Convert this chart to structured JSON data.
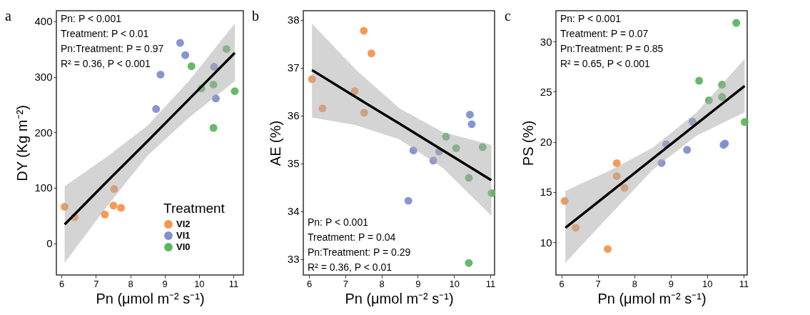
{
  "chart_data": [
    {
      "type": "scatter",
      "title": "a",
      "xlabel": "Pn (μmol m⁻² s⁻¹)",
      "ylabel": "DY (Kg m⁻²)",
      "legend_title": "Treatment",
      "legend": "bottom right",
      "xlim": [
        5.85,
        11.29
      ],
      "xticks": [
        6,
        7,
        8,
        9,
        10,
        11
      ],
      "ylim": [
        -57,
        419
      ],
      "yticks": [
        0,
        100,
        200,
        300,
        400
      ],
      "annotations": [
        "Pn: P < 0.001",
        "Treatment: P < 0.01",
        "Pn:Treatment: P = 0.97",
        "R² = 0.36, P < 0.001"
      ],
      "series": [
        {
          "name": "VI2",
          "color": "#f5954f",
          "marker": "circle",
          "x": [
            6.09,
            6.38,
            7.26,
            7.53,
            7.51,
            7.73
          ],
          "values": [
            66,
            47,
            52,
            98,
            68,
            64
          ]
        },
        {
          "name": "VI1",
          "color": "#8190cf",
          "marker": "circle",
          "x": [
            8.75,
            8.88,
            9.45,
            9.6,
            10.44,
            10.49
          ],
          "values": [
            242,
            304,
            361,
            339,
            318,
            261
          ]
        },
        {
          "name": "VI0",
          "color": "#5cb660",
          "marker": "circle",
          "x": [
            9.78,
            10.07,
            10.42,
            10.42,
            10.8,
            11.04
          ],
          "values": [
            319,
            279,
            286,
            208,
            350,
            274
          ]
        },
        {
          "type": "line",
          "color": "#000000",
          "x": [
            6.09,
            7.3,
            8.5,
            9.7,
            11.04
          ],
          "values": [
            34,
            110,
            184,
            259,
            343
          ],
          "lower": [
            -35,
            65,
            158,
            226,
            292
          ],
          "upper": [
            103,
            155,
            212,
            292,
            396
          ]
        }
      ]
    },
    {
      "type": "scatter",
      "title": "b",
      "xlabel": "Pn (μmol m⁻² s⁻¹)",
      "ylabel": "AE (%)",
      "xlim": [
        5.84,
        11.12
      ],
      "xticks": [
        6,
        7,
        8,
        9,
        10,
        11
      ],
      "ylim": [
        32.67,
        38.19
      ],
      "yticks": [
        33,
        34,
        35,
        36,
        37,
        38
      ],
      "annotations": [
        "Pn: P < 0.001",
        "Treatment: P = 0.04",
        "Pn:Treatment: P = 0.29",
        "R² = 0.36,  P < 0.01"
      ],
      "series": [
        {
          "color": "#f5954f",
          "marker": "circle",
          "x": [
            6.08,
            6.37,
            7.26,
            7.51,
            7.52,
            7.72
          ],
          "values": [
            36.76,
            36.15,
            36.51,
            37.77,
            36.06,
            37.3
          ]
        },
        {
          "color": "#8190cf",
          "marker": "circle",
          "x": [
            8.74,
            8.88,
            9.43,
            9.59,
            10.44,
            10.49
          ],
          "values": [
            34.22,
            35.27,
            35.06,
            35.25,
            36.02,
            35.82
          ]
        },
        {
          "color": "#5cb660",
          "marker": "circle",
          "x": [
            9.78,
            10.06,
            10.41,
            10.41,
            10.79,
            11.04
          ],
          "values": [
            35.56,
            35.32,
            34.7,
            32.92,
            35.34,
            34.38
          ]
        },
        {
          "type": "line",
          "color": "#000000",
          "x": [
            6.08,
            7.3,
            8.5,
            9.7,
            11.03
          ],
          "values": [
            36.95,
            36.38,
            35.83,
            35.27,
            34.65
          ],
          "lower": [
            35.96,
            35.8,
            35.5,
            34.9,
            33.91
          ],
          "upper": [
            37.92,
            36.95,
            36.15,
            35.65,
            35.39
          ]
        }
      ]
    },
    {
      "type": "scatter",
      "title": "c",
      "xlabel": "Pn (μmol m⁻² s⁻¹)",
      "ylabel": "PS (%)",
      "xlim": [
        5.85,
        11.1
      ],
      "xticks": [
        6,
        7,
        8,
        9,
        10,
        11
      ],
      "ylim": [
        6.74,
        33.07
      ],
      "yticks": [
        10,
        15,
        20,
        25,
        30
      ],
      "annotations": [
        "Pn: P < 0.001",
        "Treatment: P = 0.07",
        "Pn:Treatment: P = 0.85",
        "R² = 0.65, P < 0.001"
      ],
      "series": [
        {
          "color": "#f5954f",
          "marker": "circle",
          "x": [
            6.09,
            6.39,
            7.27,
            7.52,
            7.52,
            7.73
          ],
          "values": [
            14.12,
            11.44,
            9.33,
            17.88,
            16.58,
            15.42
          ]
        },
        {
          "color": "#8190cf",
          "marker": "circle",
          "x": [
            8.75,
            8.88,
            9.45,
            9.6,
            10.45,
            10.49
          ],
          "values": [
            17.9,
            19.77,
            19.21,
            22.02,
            19.7,
            19.84
          ]
        },
        {
          "color": "#5cb660",
          "marker": "circle",
          "x": [
            9.78,
            10.05,
            10.41,
            10.41,
            10.8,
            11.03
          ],
          "values": [
            26.09,
            24.14,
            25.7,
            24.47,
            31.86,
            21.98
          ]
        },
        {
          "type": "line",
          "color": "#000000",
          "x": [
            6.11,
            7.3,
            8.5,
            9.7,
            11.03
          ],
          "values": [
            11.44,
            14.86,
            18.31,
            21.76,
            25.58
          ],
          "lower": [
            7.95,
            12.6,
            17.2,
            20.6,
            22.95
          ],
          "upper": [
            15.12,
            17.1,
            19.4,
            22.9,
            28.26
          ]
        }
      ]
    }
  ]
}
